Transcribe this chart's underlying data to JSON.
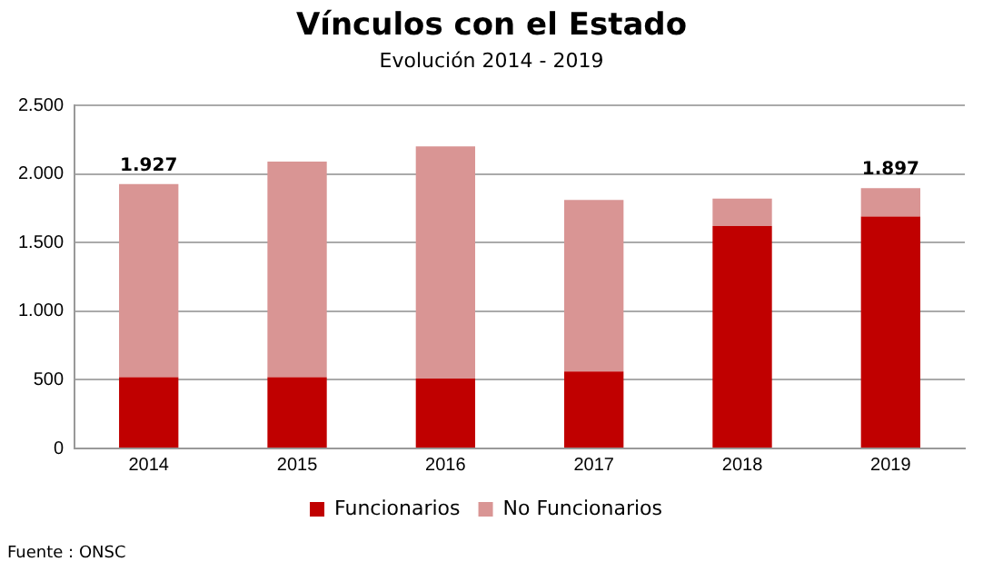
{
  "chart_data": {
    "type": "bar",
    "title": "Vínculos  con el Estado",
    "subtitle": "Evolución 2014 - 2019",
    "categories": [
      "2014",
      "2015",
      "2016",
      "2017",
      "2018",
      "2019"
    ],
    "stacked": true,
    "series": [
      {
        "name": "Funcionarios",
        "color": "#c00000",
        "values": [
          520,
          520,
          510,
          560,
          1620,
          1690
        ]
      },
      {
        "name": "No Funcionarios",
        "color": "#d99594",
        "values": [
          1407,
          1570,
          1690,
          1250,
          200,
          207
        ]
      }
    ],
    "totals": [
      "1.927",
      null,
      null,
      null,
      null,
      "1.897"
    ],
    "ylim": [
      0,
      2500
    ],
    "yticks": [
      {
        "value": 0,
        "label": "0"
      },
      {
        "value": 500,
        "label": "500"
      },
      {
        "value": 1000,
        "label": "1.000"
      },
      {
        "value": 1500,
        "label": "1.500"
      },
      {
        "value": 2000,
        "label": "2.000"
      },
      {
        "value": 2500,
        "label": "2.500"
      }
    ],
    "grid": "y",
    "legend": "bottom",
    "annotations": [
      "Fuente : ONSC"
    ]
  }
}
